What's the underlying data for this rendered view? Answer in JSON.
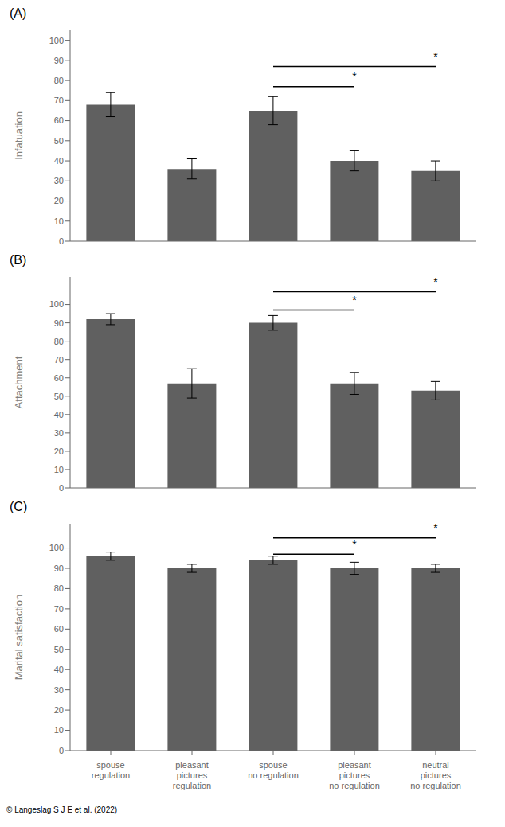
{
  "chart_data": [
    {
      "type": "bar",
      "title": "(A)",
      "ylabel": "Infatuation",
      "categories": [
        "spouse\nregulation",
        "pleasant\npictures\nregulation",
        "spouse\nno regulation",
        "pleasant\npictures\nno regulation",
        "neutral\npictures\nno regulation"
      ],
      "values": [
        68,
        36,
        65,
        40,
        35
      ],
      "errors": [
        6,
        5,
        7,
        5,
        5
      ],
      "color": "#606060",
      "ylim": [
        0,
        105
      ],
      "yticks": [
        0,
        10,
        20,
        30,
        40,
        50,
        60,
        70,
        80,
        90,
        100
      ],
      "grid": false,
      "tick_labels": "y",
      "sig_lines": [
        {
          "x1": "spouse\nno regulation",
          "x2": "pleasant\npictures\nno regulation",
          "y": 77,
          "text": "*",
          "text_y": 78
        },
        {
          "x1": "spouse\nno regulation",
          "x2": "neutral\npictures\nno regulation",
          "y": 87,
          "text": "*",
          "text_y": 88
        }
      ]
    },
    {
      "type": "bar",
      "title": "(B)",
      "ylabel": "Attachment",
      "categories": [
        "spouse\nregulation",
        "pleasant\npictures\nregulation",
        "spouse\nno regulation",
        "pleasant\npictures\nno regulation",
        "neutral\npictures\nno regulation"
      ],
      "values": [
        92,
        57,
        90,
        57,
        53
      ],
      "errors": [
        3,
        8,
        4,
        6,
        5
      ],
      "color": "#606060",
      "ylim": [
        0,
        115
      ],
      "yticks": [
        0,
        10,
        20,
        30,
        40,
        50,
        60,
        70,
        80,
        90,
        100
      ],
      "grid": false,
      "tick_labels": "y",
      "sig_lines": [
        {
          "x1": "spouse\nno regulation",
          "x2": "pleasant\npictures\nno regulation",
          "y": 97,
          "text": "*",
          "text_y": 98
        },
        {
          "x1": "spouse\nno regulation",
          "x2": "neutral\npictures\nno regulation",
          "y": 107,
          "text": "*",
          "text_y": 108
        }
      ]
    },
    {
      "type": "bar",
      "title": "(C)",
      "ylabel": "Marital satisfaction",
      "categories": [
        "spouse\nregulation",
        "pleasant\npictures\nregulation",
        "spouse\nno regulation",
        "pleasant\npictures\nno regulation",
        "neutral\npictures\nno regulation"
      ],
      "values": [
        96,
        90,
        94,
        90,
        90
      ],
      "errors": [
        2,
        2,
        2,
        3,
        2
      ],
      "color": "#606060",
      "ylim": [
        0,
        112
      ],
      "yticks": [
        0,
        10,
        20,
        30,
        40,
        50,
        60,
        70,
        80,
        90,
        100
      ],
      "grid": false,
      "sig_lines": [
        {
          "x1": "spouse\nno regulation",
          "x2": "pleasant\npictures\nno regulation",
          "y": 97,
          "text": "*",
          "text_y": 98
        },
        {
          "x1": "spouse\nno regulation",
          "x2": "neutral\npictures\nno regulation",
          "y": 105,
          "text": "*",
          "text_y": 106
        }
      ],
      "annotations": [
        "© Langeslag S J E et al. (2022)"
      ]
    }
  ]
}
